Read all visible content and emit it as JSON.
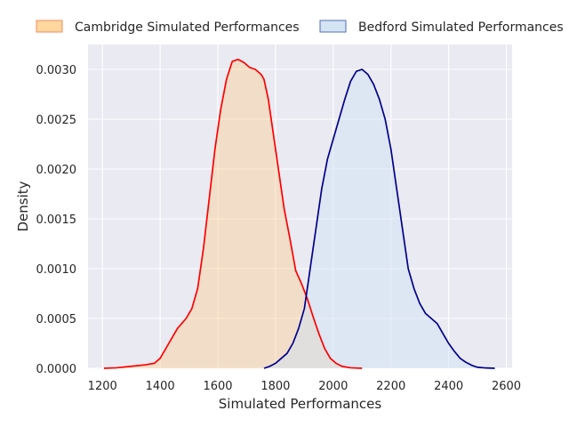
{
  "chart_data": {
    "type": "area",
    "xlabel": "Simulated Performances",
    "ylabel": "Density",
    "xlim": [
      1150,
      2620
    ],
    "ylim": [
      0,
      0.00325
    ],
    "xticks": [
      1200,
      1400,
      1600,
      1800,
      2000,
      2200,
      2400,
      2600
    ],
    "xtick_labels": [
      "1200",
      "1400",
      "1600",
      "1800",
      "2000",
      "2200",
      "2400",
      "2600"
    ],
    "yticks": [
      0,
      0.0005,
      0.001,
      0.0015,
      0.002,
      0.0025,
      0.003
    ],
    "ytick_labels": [
      "0.0000",
      "0.0005",
      "0.0010",
      "0.0015",
      "0.0020",
      "0.0025",
      "0.0030"
    ],
    "grid": true,
    "background": "#eaeaf2",
    "legend_placement": "top",
    "series": [
      {
        "name": "Cambridge Simulated Performances",
        "line_color": "#ff0000",
        "fill_color": "#ffc77a",
        "fill_opacity": 0.35,
        "legend_fill": "#ffd79f",
        "legend_edge": "#f08a5d",
        "points": [
          [
            1205,
            0.0
          ],
          [
            1250,
            5e-06
          ],
          [
            1300,
            2e-05
          ],
          [
            1350,
            3.5e-05
          ],
          [
            1380,
            5e-05
          ],
          [
            1400,
            0.0001
          ],
          [
            1430,
            0.00025
          ],
          [
            1460,
            0.0004
          ],
          [
            1490,
            0.0005
          ],
          [
            1510,
            0.0006
          ],
          [
            1530,
            0.0008
          ],
          [
            1550,
            0.0012
          ],
          [
            1570,
            0.0017
          ],
          [
            1590,
            0.0022
          ],
          [
            1610,
            0.0026
          ],
          [
            1630,
            0.0029
          ],
          [
            1650,
            0.00308
          ],
          [
            1670,
            0.0031
          ],
          [
            1690,
            0.00307
          ],
          [
            1710,
            0.00302
          ],
          [
            1730,
            0.003
          ],
          [
            1750,
            0.00295
          ],
          [
            1760,
            0.0029
          ],
          [
            1775,
            0.0027
          ],
          [
            1790,
            0.0024
          ],
          [
            1810,
            0.002
          ],
          [
            1830,
            0.0016
          ],
          [
            1850,
            0.0013
          ],
          [
            1870,
            0.00098
          ],
          [
            1890,
            0.00085
          ],
          [
            1910,
            0.0007
          ],
          [
            1930,
            0.00052
          ],
          [
            1950,
            0.00035
          ],
          [
            1970,
            0.0002
          ],
          [
            1990,
            0.0001
          ],
          [
            2010,
            5e-05
          ],
          [
            2030,
            2e-05
          ],
          [
            2060,
            5e-06
          ],
          [
            2100,
            0.0
          ]
        ]
      },
      {
        "name": "Bedford Simulated Performances",
        "line_color": "#00008b",
        "fill_color": "#cfe2f3",
        "fill_opacity": 0.5,
        "legend_fill": "#d5e4f2",
        "legend_edge": "#4f6db8",
        "points": [
          [
            1760,
            0.0
          ],
          [
            1780,
            2e-05
          ],
          [
            1800,
            5e-05
          ],
          [
            1820,
            0.0001
          ],
          [
            1840,
            0.00015
          ],
          [
            1860,
            0.00025
          ],
          [
            1880,
            0.0004
          ],
          [
            1900,
            0.0006
          ],
          [
            1920,
            0.001
          ],
          [
            1940,
            0.0014
          ],
          [
            1960,
            0.0018
          ],
          [
            1980,
            0.0021
          ],
          [
            2000,
            0.0023
          ],
          [
            2020,
            0.0025
          ],
          [
            2040,
            0.0027
          ],
          [
            2060,
            0.00288
          ],
          [
            2080,
            0.00298
          ],
          [
            2100,
            0.003
          ],
          [
            2120,
            0.00295
          ],
          [
            2140,
            0.00285
          ],
          [
            2160,
            0.0027
          ],
          [
            2180,
            0.0025
          ],
          [
            2200,
            0.0022
          ],
          [
            2220,
            0.0018
          ],
          [
            2240,
            0.0014
          ],
          [
            2260,
            0.001
          ],
          [
            2280,
            0.0008
          ],
          [
            2300,
            0.00065
          ],
          [
            2320,
            0.00055
          ],
          [
            2340,
            0.0005
          ],
          [
            2360,
            0.00045
          ],
          [
            2380,
            0.00035
          ],
          [
            2400,
            0.00025
          ],
          [
            2420,
            0.00017
          ],
          [
            2440,
            0.0001
          ],
          [
            2460,
            6e-05
          ],
          [
            2480,
            3e-05
          ],
          [
            2500,
            1e-05
          ],
          [
            2530,
            3e-06
          ],
          [
            2560,
            0.0
          ]
        ]
      }
    ]
  }
}
